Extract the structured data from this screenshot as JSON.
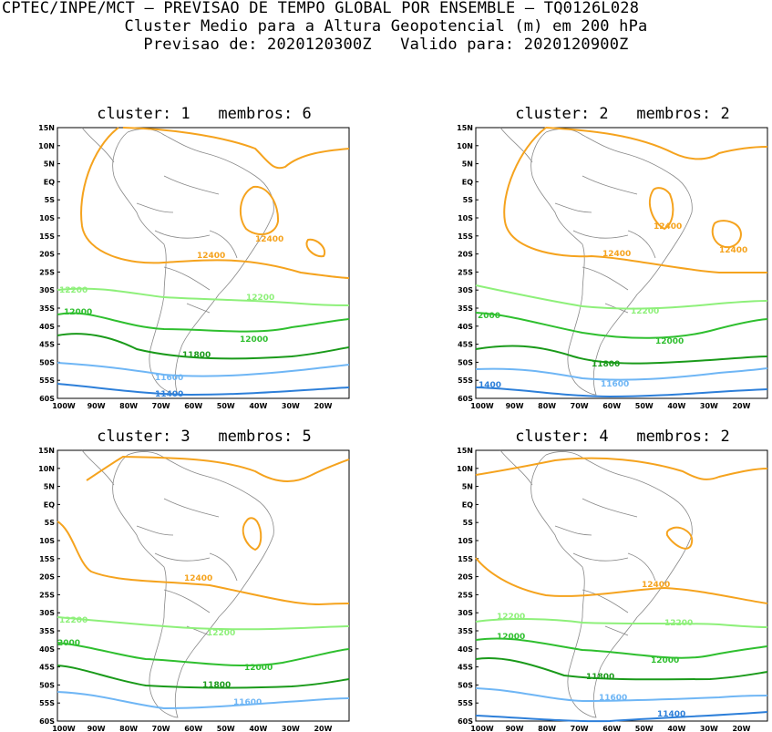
{
  "header": {
    "line1": "CPTEC/INPE/MCT – PREVISAO DE TEMPO GLOBAL POR ENSEMBLE – TQ0126L028",
    "line2": "Cluster Medio para a Altura Geopotencial (m) em 200 hPa",
    "line3": "Previsao de: 2020120300Z   Valido para: 2020120900Z"
  },
  "axes": {
    "lat_labels": [
      "15N",
      "10N",
      "5N",
      "EQ",
      "5S",
      "10S",
      "15S",
      "20S",
      "25S",
      "30S",
      "35S",
      "40S",
      "45S",
      "50S",
      "55S",
      "60S"
    ],
    "lon_labels": [
      "100W",
      "90W",
      "80W",
      "70W",
      "60W",
      "50W",
      "40W",
      "30W",
      "20W"
    ]
  },
  "colors": {
    "c12400": "#f5a31e",
    "c12200": "#8ef07a",
    "c12000": "#2fbf2f",
    "c11800": "#1a9a1a",
    "c11600": "#6fb6f5",
    "c11400": "#2d7fd9",
    "coast": "#888888"
  },
  "panels": [
    {
      "title": "cluster: 1   membros: 6",
      "labels": {
        "a": "12400",
        "b": "12400",
        "c": "12200",
        "d": "12200",
        "e": "12000",
        "f": "12000",
        "g": "11800",
        "h": "11600",
        "i": "11400"
      }
    },
    {
      "title": "cluster: 2   membros: 2",
      "labels": {
        "a": "12400",
        "b": "12400",
        "c": "12400",
        "d": "12200",
        "e": "2000",
        "f": "12000",
        "g": "11800",
        "h": "11600",
        "i": "1400"
      }
    },
    {
      "title": "cluster: 3   membros: 5",
      "labels": {
        "a": "12400",
        "b": "12200",
        "c": "12200",
        "d": "2000",
        "e": "12000",
        "f": "11800",
        "g": "11600"
      }
    },
    {
      "title": "cluster: 4   membros: 2",
      "labels": {
        "a": "12400",
        "b": "12200",
        "c": "12200",
        "d": "12000",
        "e": "12000",
        "f": "11800",
        "g": "11600",
        "h": "11400"
      }
    }
  ]
}
